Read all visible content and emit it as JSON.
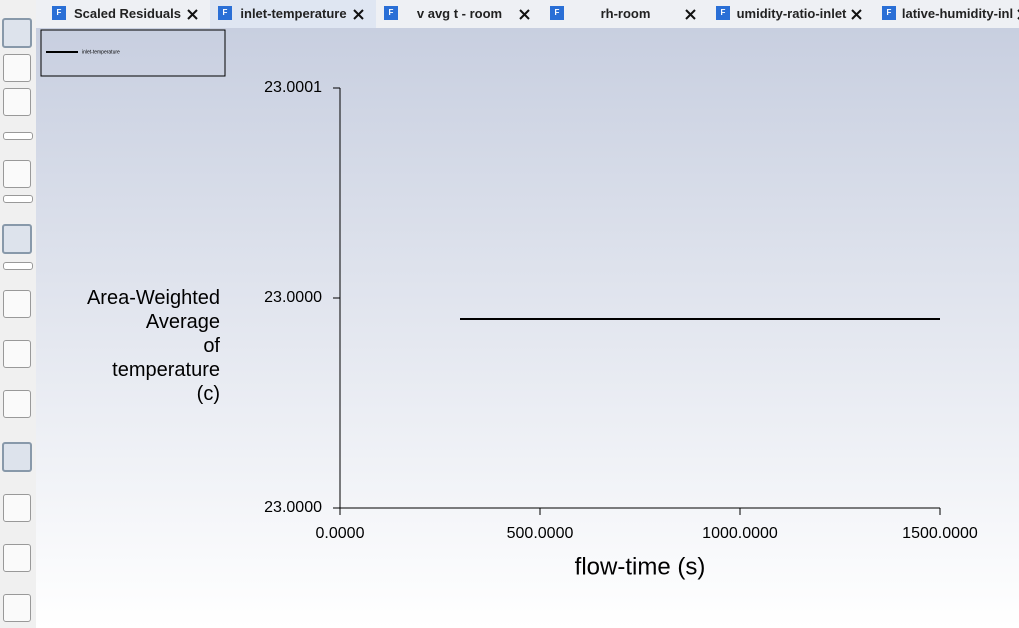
{
  "tabs": [
    "Scaled Residuals",
    "inlet-temperature",
    "v avg t - room",
    "rh-room",
    "umidity-ratio-inlet",
    "lative-humidity-inl"
  ],
  "chart_data": {
    "type": "line",
    "ylabel": [
      "Area-Weighted",
      "Average",
      "of",
      "temperature",
      "(c)"
    ],
    "xlabel": "flow-time (s)",
    "xlim": [
      0,
      1500
    ],
    "xticks": [
      {
        "value": 0,
        "label": "0.0000"
      },
      {
        "value": 500,
        "label": "500.0000"
      },
      {
        "value": 1000,
        "label": "1000.0000"
      },
      {
        "value": 1500,
        "label": "1500.0000"
      }
    ],
    "ylim": [
      22.999955,
      23.000055
    ],
    "yticks": [
      {
        "value": 22.999955,
        "label": "23.0000"
      },
      {
        "value": 23.000005,
        "label": "23.0000"
      },
      {
        "value": 23.000055,
        "label": "23.0001"
      }
    ],
    "series": [
      {
        "name": "inlet-temperature",
        "color": "#000000",
        "x": [
          300,
          1500
        ],
        "values": [
          23.0,
          23.0
        ]
      }
    ],
    "legend": "top-left"
  }
}
